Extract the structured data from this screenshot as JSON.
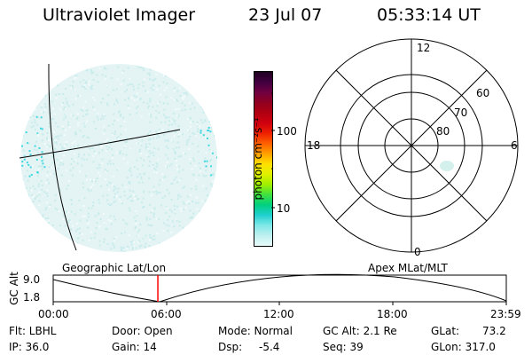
{
  "header": {
    "title": "Ultraviolet Imager",
    "date": "23 Jul 07",
    "time": "05:33:14 UT"
  },
  "colorbar": {
    "label": "photon cm⁻²s⁻¹",
    "ticks": [
      "100",
      "10"
    ],
    "scale": "log",
    "colors": [
      "#200020",
      "#400040",
      "#700040",
      "#900020",
      "#b00010",
      "#d00010",
      "#ee2000",
      "#ff6000",
      "#ffa000",
      "#ffe000",
      "#e0f000",
      "#a0f000",
      "#40e040",
      "#00d080",
      "#20d0d0",
      "#80e8e8",
      "#c0f0f0",
      "#e8fafa"
    ]
  },
  "polar": {
    "mlt_labels": {
      "top": "12",
      "left": "18",
      "right": "6",
      "bottom": "0"
    },
    "lat_labels": [
      "60",
      "70",
      "80"
    ]
  },
  "timeline": {
    "left_label": "Geographic Lat/Lon",
    "right_label": "Apex MLat/MLT",
    "ylabel": "GC Alt",
    "y_ticks": [
      "9.0",
      "1.8"
    ],
    "x_ticks": [
      "00:00",
      "06:00",
      "12:00",
      "18:00",
      "23:59"
    ],
    "current_time_fraction": 0.231
  },
  "info": {
    "flt": "Flt: LBHL",
    "ip": "IP: 36.0",
    "door": "Door: Open",
    "gain": "Gain: 14",
    "mode": "Mode: Normal",
    "dsp": "Dsp:",
    "dsp_value": "-5.4",
    "gcalt": "GC Alt: 2.1 Re",
    "seq": "Seq: 39",
    "glat": "GLat:",
    "glat_value": "73.2",
    "glon": "GLon: 317.0"
  },
  "colors": {
    "aurora_dim": "#c8ecec",
    "aurora_bright": "#40d8e0",
    "marker": "#ff0000"
  }
}
